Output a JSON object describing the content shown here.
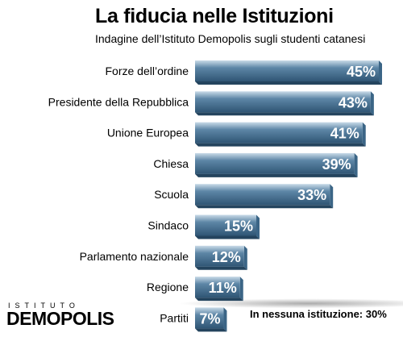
{
  "chart_data": {
    "type": "bar",
    "orientation": "horizontal",
    "title": "La fiducia nelle Istituzioni",
    "subtitle": "Indagine dell’Istituto Demopolis sugli studenti catanesi",
    "categories": [
      "Forze dell’ordine",
      "Presidente della Repubblica",
      "Unione Europea",
      "Chiesa",
      "Scuola",
      "Sindaco",
      "Parlamento nazionale",
      "Regione",
      "Partiti"
    ],
    "values": [
      45,
      43,
      41,
      39,
      33,
      15,
      12,
      11,
      7
    ],
    "value_suffix": "%",
    "xlim": [
      0,
      45
    ],
    "bar_color": "#5d86a6",
    "bar_highlight": "#c9dbe8",
    "label_color": "#ffffff",
    "note": "In nessuna istituzione: 30%"
  },
  "brand": {
    "top": "ISTITUTO",
    "main": "DEMOPOLIS"
  }
}
